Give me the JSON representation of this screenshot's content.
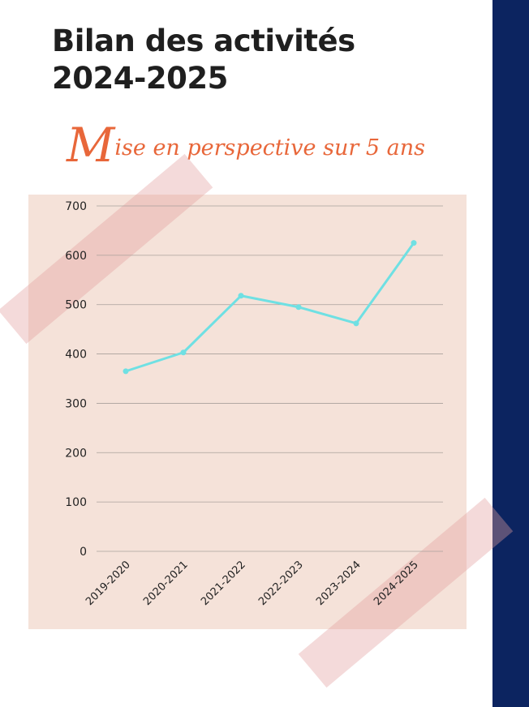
{
  "header": {
    "title_line1": "Bilan des activités",
    "title_line2": "2024-2025",
    "subtitle_initial": "M",
    "subtitle_rest": "ise en perspective sur 5 ans"
  },
  "colors": {
    "sidebar": "#0c2460",
    "title": "#1f1f1f",
    "subtitle": "#e8673a",
    "chart_background": "#f5e2d9",
    "line": "#6fe0e3",
    "grid": "#a9a09b"
  },
  "chart_data": {
    "type": "line",
    "title": "",
    "xlabel": "",
    "ylabel": "",
    "categories": [
      "2019-2020",
      "2020-2021",
      "2021-2022",
      "2022-2023",
      "2023-2024",
      "2024-2025"
    ],
    "series": [
      {
        "values": [
          365,
          403,
          518,
          495,
          462,
          625
        ]
      }
    ],
    "ylim": [
      0,
      700
    ],
    "yticks": [
      0,
      100,
      200,
      300,
      400,
      500,
      600,
      700
    ],
    "grid": true,
    "legend": "none"
  }
}
